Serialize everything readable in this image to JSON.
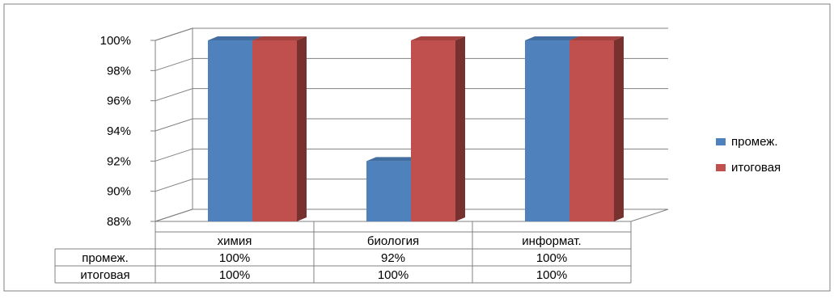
{
  "chart_data": {
    "type": "bar",
    "categories": [
      "химия",
      "биология",
      "информат."
    ],
    "series": [
      {
        "name": "промеж.",
        "values": [
          100,
          92,
          100
        ],
        "color": "#4f81bd",
        "labels": [
          "100%",
          "92%",
          "100%"
        ]
      },
      {
        "name": "итоговая",
        "values": [
          100,
          100,
          100
        ],
        "color": "#c0504d",
        "labels": [
          "100%",
          "100%",
          "100%"
        ]
      }
    ],
    "y_ticks": [
      "100%",
      "98%",
      "96%",
      "94%",
      "92%",
      "90%",
      "88%"
    ],
    "ylim": [
      88,
      100
    ],
    "grid": true,
    "three_d": true,
    "legend_position": "right",
    "data_table": true
  }
}
